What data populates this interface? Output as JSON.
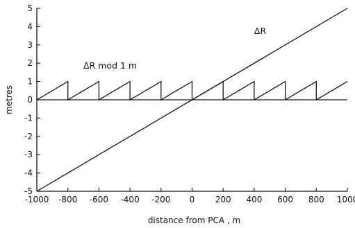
{
  "chart_data": {
    "type": "line",
    "title": "",
    "xlabel": "distance  from PCA , m",
    "ylabel": "metres",
    "xlim": [
      -1000,
      1000
    ],
    "ylim": [
      -5,
      5
    ],
    "x_ticks": [
      -1000,
      -800,
      -600,
      -400,
      -200,
      0,
      200,
      400,
      600,
      800,
      1000
    ],
    "x_tick_labels": [
      "-1000",
      "-800",
      "-600",
      "-400",
      "-200",
      "0",
      "200",
      "400",
      "600",
      "800",
      "1000"
    ],
    "y_ticks": [
      -5,
      -4,
      -3,
      -2,
      -1,
      0,
      1,
      2,
      3,
      4,
      5
    ],
    "y_tick_labels": [
      "-5",
      "-4",
      "-3",
      "-2",
      "-1",
      "0",
      "1",
      "2",
      "3",
      "4",
      "5"
    ],
    "grid": false,
    "legend": "none",
    "zero_line": true,
    "series": [
      {
        "label": "ΔR",
        "x": [
          -1000,
          1000
        ],
        "y": [
          -5,
          5
        ],
        "label_pos": [
          400,
          3.6
        ]
      },
      {
        "label": "ΔR mod 1 m",
        "shape": "sawtooth",
        "x": [
          -1000,
          -800,
          -800,
          -600,
          -600,
          -400,
          -400,
          -200,
          -200,
          0,
          0,
          200,
          200,
          400,
          400,
          600,
          600,
          800,
          800,
          1000
        ],
        "y": [
          0,
          1,
          0,
          1,
          0,
          1,
          0,
          1,
          0,
          1,
          0,
          1,
          0,
          1,
          0,
          1,
          0,
          1,
          0,
          1
        ],
        "label_pos": [
          -700,
          1.7
        ]
      }
    ]
  }
}
